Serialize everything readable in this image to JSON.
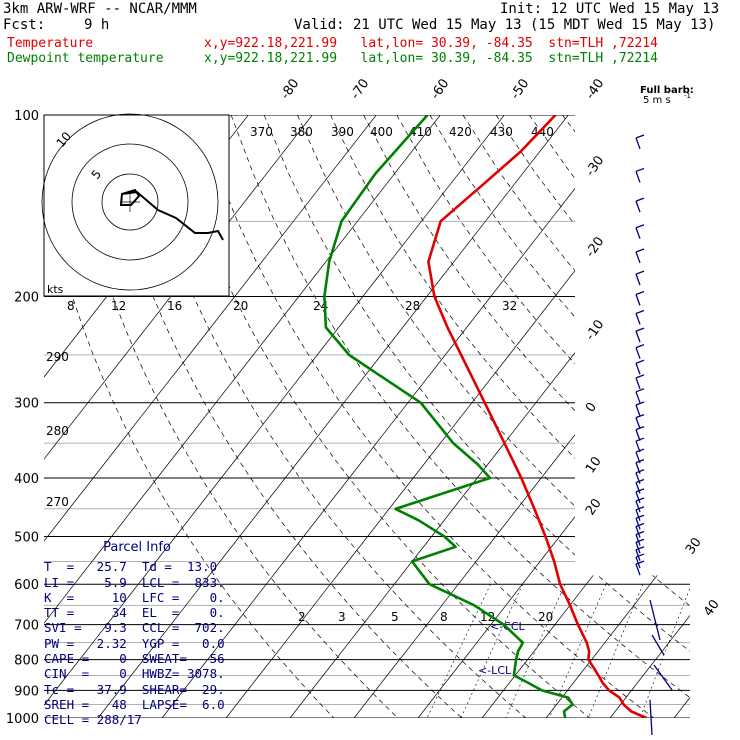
{
  "header": {
    "model": "3km ARW-WRF -- NCAR/MMM",
    "init": "Init: 12 UTC Wed 15 May 13",
    "fcst_label": "Fcst:",
    "fcst_value": "9 h",
    "valid": "Valid: 21 UTC Wed 15 May 13 (15 MDT Wed 15 May 13)"
  },
  "legend": [
    {
      "name": "Temperature",
      "location": "x,y=922.18,221.99   lat,lon= 30.39, -84.35  stn=TLH ,72214",
      "color": "#e00000"
    },
    {
      "name": "Dewpoint temperature",
      "location": "x,y=922.18,221.99   lat,lon= 30.39, -84.35  stn=TLH ,72214",
      "color": "#008000"
    }
  ],
  "full_barb_label": "Full barb:",
  "full_barb_value": "5 m s",
  "full_barb_exp": "-1",
  "hodograph_units": "kts",
  "hodograph_ring_labels": [
    "5",
    "10"
  ],
  "parcel_info": {
    "title": "Parcel Info",
    "rows": [
      "T  =   25.7  Td =  13.0",
      "LI =    5.9  LCL =  833.",
      "K  =     10  LFC =    0.",
      "TT =     34  EL  =    0.",
      "SVI =   9.3  CCL =  702.",
      "PW =   2.32  YGP =   0.0",
      "CAPE =    0  SWEAT=   56",
      "CIN  =    0  HWBZ= 3078.",
      "Tc =   37.9  SHEAR=  29.",
      "SREH =   48  LAPSE=  6.0",
      "CELL = 288/17"
    ]
  },
  "chart_data": {
    "type": "line",
    "title": "",
    "ylabel": "Pressure",
    "pressure_ticks": [
      100,
      200,
      300,
      400,
      500,
      600,
      700,
      800,
      900,
      1000
    ],
    "isotherm_labels": [
      "-80",
      "-70",
      "-60",
      "-50",
      "-40",
      "-30",
      "-20",
      "-10",
      "0",
      "10",
      "20",
      "30",
      "40"
    ],
    "dry_adiabat_labels": [
      "370",
      "380",
      "390",
      "400",
      "410",
      "420",
      "430",
      "440",
      "290",
      "280",
      "270"
    ],
    "mixing_ratio_upper_labels": [
      "8",
      "12",
      "16",
      "20",
      "24",
      "28",
      "32"
    ],
    "mixing_ratio_lower_labels": [
      "2",
      "3",
      "5",
      "8",
      "12",
      "20"
    ],
    "annotations": [
      "<-CCL",
      "<-LCL"
    ],
    "series": [
      {
        "name": "Temperature",
        "color": "#e00000",
        "points": [
          [
            1000,
            25.7
          ],
          [
            975,
            22.5
          ],
          [
            950,
            20.5
          ],
          [
            925,
            19.0
          ],
          [
            900,
            16.5
          ],
          [
            875,
            14.6
          ],
          [
            850,
            13.0
          ],
          [
            825,
            11.3
          ],
          [
            800,
            9.5
          ],
          [
            775,
            8.6
          ],
          [
            750,
            7.2
          ],
          [
            700,
            3.6
          ],
          [
            650,
            0.0
          ],
          [
            600,
            -4.1
          ],
          [
            550,
            -7.8
          ],
          [
            500,
            -12.2
          ],
          [
            450,
            -17.3
          ],
          [
            400,
            -23.1
          ],
          [
            350,
            -30.0
          ],
          [
            300,
            -38.0
          ],
          [
            250,
            -47.5
          ],
          [
            225,
            -53.0
          ],
          [
            200,
            -58.8
          ],
          [
            175,
            -64.0
          ],
          [
            150,
            -67.0
          ],
          [
            130,
            -64.8
          ],
          [
            115,
            -63.0
          ],
          [
            100,
            -62.0
          ]
        ]
      },
      {
        "name": "Dewpoint temperature",
        "color": "#008000",
        "points": [
          [
            1000,
            13.0
          ],
          [
            975,
            12.0
          ],
          [
            950,
            12.5
          ],
          [
            925,
            11.0
          ],
          [
            900,
            6.0
          ],
          [
            875,
            3.0
          ],
          [
            850,
            -0.2
          ],
          [
            825,
            -1.0
          ],
          [
            800,
            -1.8
          ],
          [
            775,
            -2.5
          ],
          [
            750,
            -2.8
          ],
          [
            700,
            -8.0
          ],
          [
            650,
            -15.0
          ],
          [
            600,
            -24.5
          ],
          [
            550,
            -30.0
          ],
          [
            520,
            -25.0
          ],
          [
            500,
            -28.0
          ],
          [
            470,
            -34.0
          ],
          [
            450,
            -39.0
          ],
          [
            400,
            -28.0
          ],
          [
            380,
            -31.5
          ],
          [
            350,
            -38.0
          ],
          [
            300,
            -48.0
          ],
          [
            250,
            -65.0
          ],
          [
            225,
            -72.0
          ],
          [
            200,
            -76.0
          ],
          [
            175,
            -79.5
          ],
          [
            150,
            -82.5
          ],
          [
            125,
            -83.0
          ],
          [
            100,
            -82.0
          ]
        ]
      }
    ],
    "wind_barbs_note": "wind profile shown as barbs on the right edge"
  }
}
